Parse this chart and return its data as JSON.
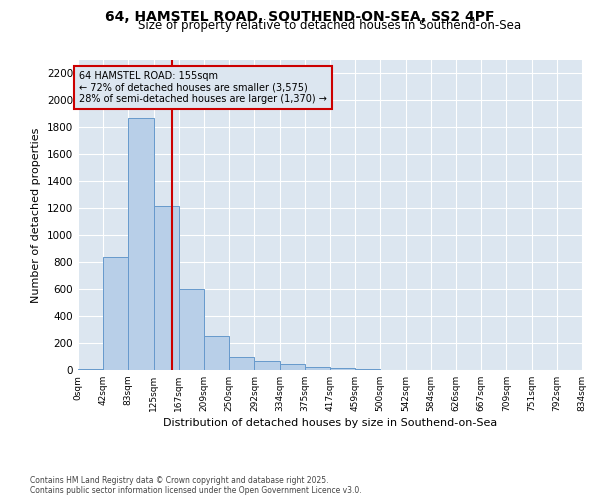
{
  "title": "64, HAMSTEL ROAD, SOUTHEND-ON-SEA, SS2 4PF",
  "subtitle": "Size of property relative to detached houses in Southend-on-Sea",
  "xlabel": "Distribution of detached houses by size in Southend-on-Sea",
  "ylabel": "Number of detached properties",
  "bin_edges": [
    0,
    42,
    83,
    125,
    167,
    209,
    250,
    292,
    334,
    375,
    417,
    459,
    500,
    542,
    584,
    626,
    667,
    709,
    751,
    792,
    834
  ],
  "bin_labels": [
    "0sqm",
    "42sqm",
    "83sqm",
    "125sqm",
    "167sqm",
    "209sqm",
    "250sqm",
    "292sqm",
    "334sqm",
    "375sqm",
    "417sqm",
    "459sqm",
    "500sqm",
    "542sqm",
    "584sqm",
    "626sqm",
    "667sqm",
    "709sqm",
    "751sqm",
    "792sqm",
    "834sqm"
  ],
  "bar_heights": [
    5,
    840,
    1870,
    1215,
    600,
    255,
    100,
    68,
    45,
    20,
    15,
    5,
    0,
    0,
    0,
    0,
    0,
    0,
    0,
    0
  ],
  "bar_color": "#b8cfe8",
  "bar_edgecolor": "#6699cc",
  "property_line_x": 155,
  "vline_color": "#cc0000",
  "annotation_text": "64 HAMSTEL ROAD: 155sqm\n← 72% of detached houses are smaller (3,575)\n28% of semi-detached houses are larger (1,370) →",
  "annotation_box_edgecolor": "#cc0000",
  "ylim_max": 2300,
  "yticks": [
    0,
    200,
    400,
    600,
    800,
    1000,
    1200,
    1400,
    1600,
    1800,
    2000,
    2200
  ],
  "plot_bg_color": "#dce6f0",
  "fig_bg_color": "#ffffff",
  "footer": "Contains HM Land Registry data © Crown copyright and database right 2025.\nContains public sector information licensed under the Open Government Licence v3.0."
}
